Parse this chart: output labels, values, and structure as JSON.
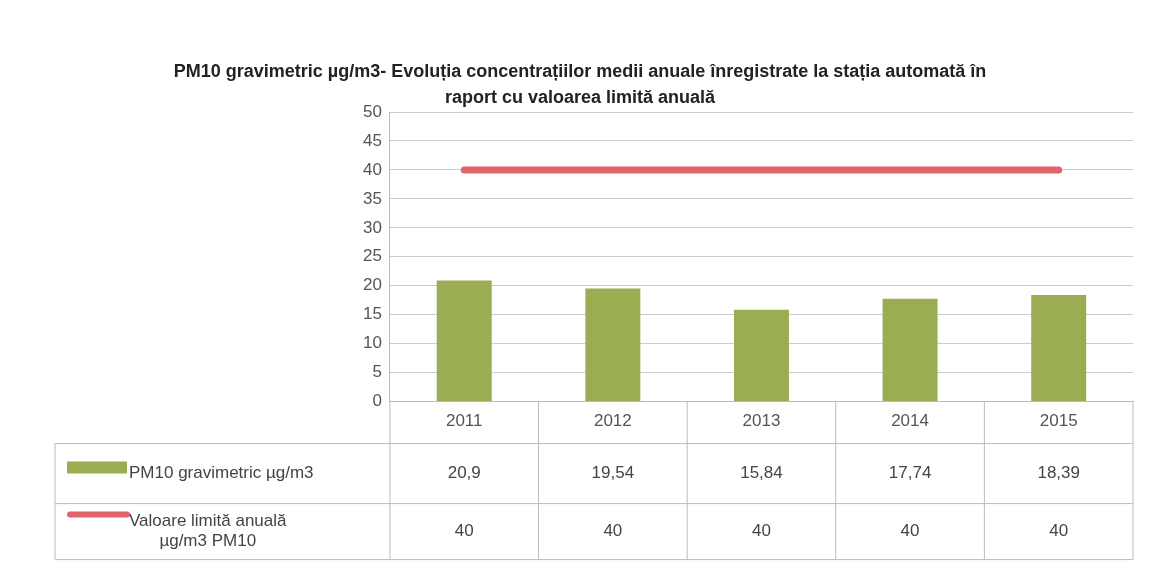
{
  "chart_data": {
    "type": "bar",
    "title": "PM10  gravimetric  µg/m3- Evoluția concentrațiilor medii anuale înregistrate la stația automată în raport cu valoarea limită anuală",
    "categories": [
      "2011",
      "2012",
      "2013",
      "2014",
      "2015"
    ],
    "series": [
      {
        "name": "PM10 gravimetric µg/m3",
        "color": "#9bad52",
        "values": [
          20.9,
          19.54,
          15.84,
          17.74,
          18.39
        ],
        "value_labels": [
          "20,9",
          "19,54",
          "15,84",
          "17,74",
          "18,39"
        ]
      },
      {
        "name": "Valoare limită anuală µg/m3 PM10",
        "type": "line",
        "color": "#e0646a",
        "values": [
          40,
          40,
          40,
          40,
          40
        ],
        "value_labels": [
          "40",
          "40",
          "40",
          "40",
          "40"
        ]
      }
    ],
    "ylim": [
      0,
      50
    ],
    "yticks": [
      0,
      5,
      10,
      15,
      20,
      25,
      30,
      35,
      40,
      45,
      50
    ],
    "grid": "y",
    "legend": "bottom",
    "marker": "none"
  }
}
